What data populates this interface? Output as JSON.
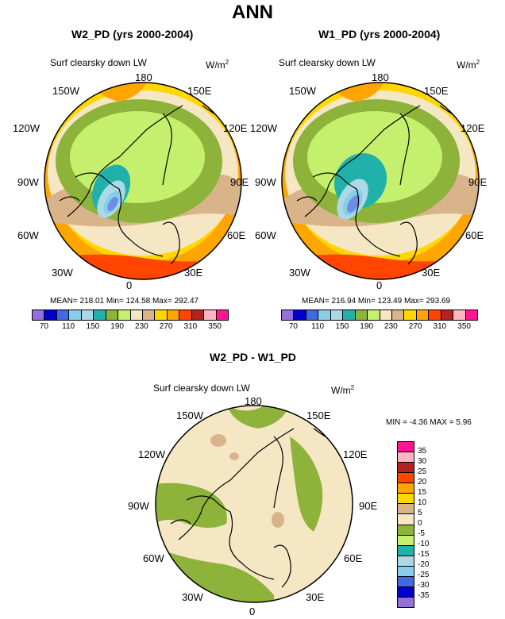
{
  "page": {
    "title": "ANN"
  },
  "panels": {
    "left": {
      "title": "W2_PD (yrs 2000-2004)",
      "variable": "Surf clearsky down LW",
      "units": "W/m",
      "units_exp": "2",
      "stats": "MEAN= 218.01  Min= 124.58  Max= 292.47"
    },
    "right": {
      "title": "W1_PD (yrs 2000-2004)",
      "variable": "Surf clearsky down LW",
      "units": "W/m",
      "units_exp": "2",
      "stats": "MEAN= 216.94  Min= 123.49  Max= 293.69"
    },
    "diff": {
      "title": "W2_PD - W1_PD",
      "variable": "Surf clearsky down LW",
      "units": "W/m",
      "units_exp": "2",
      "stats": "MIN =  -4.36 MAX =   5.96"
    }
  },
  "lon_labels": {
    "n180": "180",
    "l150w": "150W",
    "l150e": "150E",
    "l120w": "120W",
    "l120e": "120E",
    "l90w": "90W",
    "l90e": "90E",
    "l60w": "60W",
    "l60e": "60E",
    "l30w": "30W",
    "l30e": "30E",
    "l0": "0"
  },
  "colors": {
    "abs_scale": [
      "#9370db",
      "#0000cd",
      "#4169e1",
      "#87ceeb",
      "#add8e6",
      "#20b2aa",
      "#8db33a",
      "#c5f06e",
      "#f5e6c4",
      "#d9b48a",
      "#ffd700",
      "#ffa500",
      "#ff4500",
      "#b22222",
      "#ffb6c1",
      "#ff1493"
    ],
    "diff_scale": [
      "#9370db",
      "#0000cd",
      "#4169e1",
      "#87ceeb",
      "#add8e6",
      "#20b2aa",
      "#c5f06e",
      "#8db33a",
      "#f5e6c4",
      "#d9b48a",
      "#ffd700",
      "#ffa500",
      "#ff4500",
      "#b22222",
      "#ffb6c1",
      "#ff1493"
    ]
  },
  "chart_data": [
    {
      "type": "heatmap",
      "title": "W2_PD (yrs 2000-2004)",
      "variable": "Surf clearsky down LW",
      "projection": "polar-stereographic",
      "mean": 218.01,
      "min": 124.58,
      "max": 292.47,
      "colorbar_ticks": [
        70,
        110,
        150,
        190,
        230,
        270,
        310,
        350
      ]
    },
    {
      "type": "heatmap",
      "title": "W1_PD (yrs 2000-2004)",
      "variable": "Surf clearsky down LW",
      "projection": "polar-stereographic",
      "mean": 216.94,
      "min": 123.49,
      "max": 293.69,
      "colorbar_ticks": [
        70,
        110,
        150,
        190,
        230,
        270,
        310,
        350
      ]
    },
    {
      "type": "heatmap",
      "title": "W2_PD - W1_PD",
      "variable": "Surf clearsky down LW",
      "projection": "polar-stereographic",
      "min": -4.36,
      "max": 5.96,
      "colorbar_ticks": [
        35,
        30,
        25,
        20,
        15,
        10,
        5,
        0,
        -5,
        -10,
        -15,
        -20,
        -25,
        -30,
        -35
      ]
    }
  ]
}
